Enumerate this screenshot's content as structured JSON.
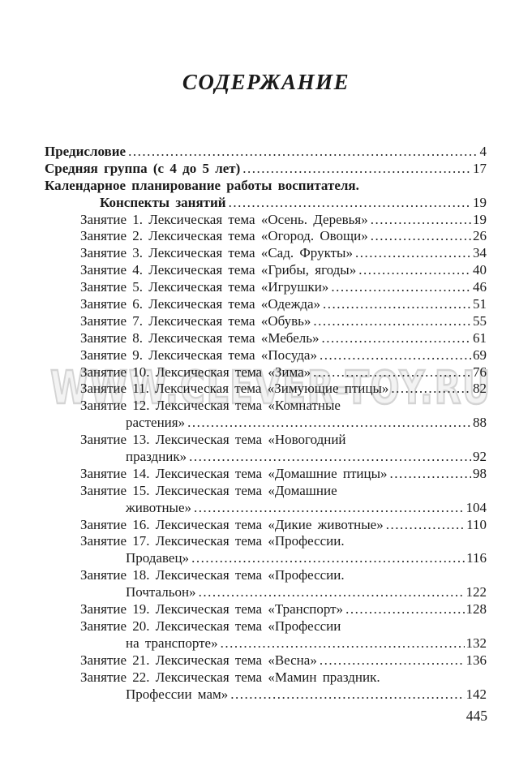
{
  "page": {
    "title": "СОДЕРЖАНИЕ",
    "folio": "445",
    "background_color": "#ffffff",
    "text_color": "#1a1a1a"
  },
  "watermark": {
    "text": "WWW.CLEVER-TOY.RU",
    "color": "#d4d4d4"
  },
  "toc": {
    "rows": [
      {
        "bold": true,
        "indent": 0,
        "text": "Предисловие",
        "page": "4"
      },
      {
        "bold": true,
        "indent": 0,
        "text": "Средняя группа (с 4 до 5 лет)",
        "page": "17"
      },
      {
        "bold": true,
        "indent": 0,
        "text": "Календарное планирование работы воспитателя.",
        "page": null
      },
      {
        "bold": true,
        "indent": 1,
        "text": "Конспекты занятий",
        "page": "19"
      },
      {
        "bold": false,
        "indent": 2,
        "text": "Занятие 1. Лексическая тема «Осень. Деревья»",
        "page": "19"
      },
      {
        "bold": false,
        "indent": 2,
        "text": "Занятие 2. Лексическая тема «Огород. Овощи»",
        "page": "26"
      },
      {
        "bold": false,
        "indent": 2,
        "text": "Занятие 3. Лексическая тема «Сад. Фрукты»",
        "page": "34"
      },
      {
        "bold": false,
        "indent": 2,
        "text": "Занятие 4. Лексическая тема «Грибы, ягоды»",
        "page": "40"
      },
      {
        "bold": false,
        "indent": 2,
        "text": "Занятие 5. Лексическая тема «Игрушки»",
        "page": "46"
      },
      {
        "bold": false,
        "indent": 2,
        "text": "Занятие 6. Лексическая тема «Одежда»",
        "page": "51"
      },
      {
        "bold": false,
        "indent": 2,
        "text": "Занятие 7. Лексическая тема «Обувь»",
        "page": "55"
      },
      {
        "bold": false,
        "indent": 2,
        "text": "Занятие 8. Лексическая тема «Мебель»",
        "page": "61"
      },
      {
        "bold": false,
        "indent": 2,
        "text": "Занятие 9. Лексическая тема «Посуда»",
        "page": "69"
      },
      {
        "bold": false,
        "indent": 2,
        "text": "Занятие 10. Лексическая тема «Зима»",
        "page": "76"
      },
      {
        "bold": false,
        "indent": 2,
        "text": "Занятие 11. Лексическая тема «Зимующие птицы»",
        "page": "82"
      },
      {
        "bold": false,
        "indent": 2,
        "text": "Занятие 12. Лексическая тема «Комнатные",
        "page": null
      },
      {
        "bold": false,
        "indent": 3,
        "text": "растения»",
        "page": "88"
      },
      {
        "bold": false,
        "indent": 2,
        "text": "Занятие 13. Лексическая тема «Новогодний",
        "page": null
      },
      {
        "bold": false,
        "indent": 3,
        "text": "праздник»",
        "page": "92"
      },
      {
        "bold": false,
        "indent": 2,
        "text": "Занятие 14. Лексическая тема «Домашние птицы»",
        "page": "98"
      },
      {
        "bold": false,
        "indent": 2,
        "text": "Занятие 15. Лексическая тема «Домашние",
        "page": null
      },
      {
        "bold": false,
        "indent": 3,
        "text": "животные»",
        "page": "104"
      },
      {
        "bold": false,
        "indent": 2,
        "text": "Занятие 16. Лексическая тема «Дикие животные»",
        "page": "110"
      },
      {
        "bold": false,
        "indent": 2,
        "text": "Занятие 17. Лексическая тема «Профессии.",
        "page": null
      },
      {
        "bold": false,
        "indent": 3,
        "text": "Продавец»",
        "page": "116"
      },
      {
        "bold": false,
        "indent": 2,
        "text": "Занятие 18. Лексическая тема «Профессии.",
        "page": null
      },
      {
        "bold": false,
        "indent": 3,
        "text": "Почтальон»",
        "page": "122"
      },
      {
        "bold": false,
        "indent": 2,
        "text": "Занятие 19. Лексическая тема «Транспорт»",
        "page": "128"
      },
      {
        "bold": false,
        "indent": 2,
        "text": "Занятие 20. Лексическая тема «Профессии",
        "page": null
      },
      {
        "bold": false,
        "indent": 3,
        "text": "на транспорте»",
        "page": "132"
      },
      {
        "bold": false,
        "indent": 2,
        "text": "Занятие 21. Лексическая тема «Весна»",
        "page": "136"
      },
      {
        "bold": false,
        "indent": 2,
        "text": "Занятие 22. Лексическая тема «Мамин праздник.",
        "page": null
      },
      {
        "bold": false,
        "indent": 3,
        "text": "Профессии мам»",
        "page": "142"
      }
    ]
  }
}
